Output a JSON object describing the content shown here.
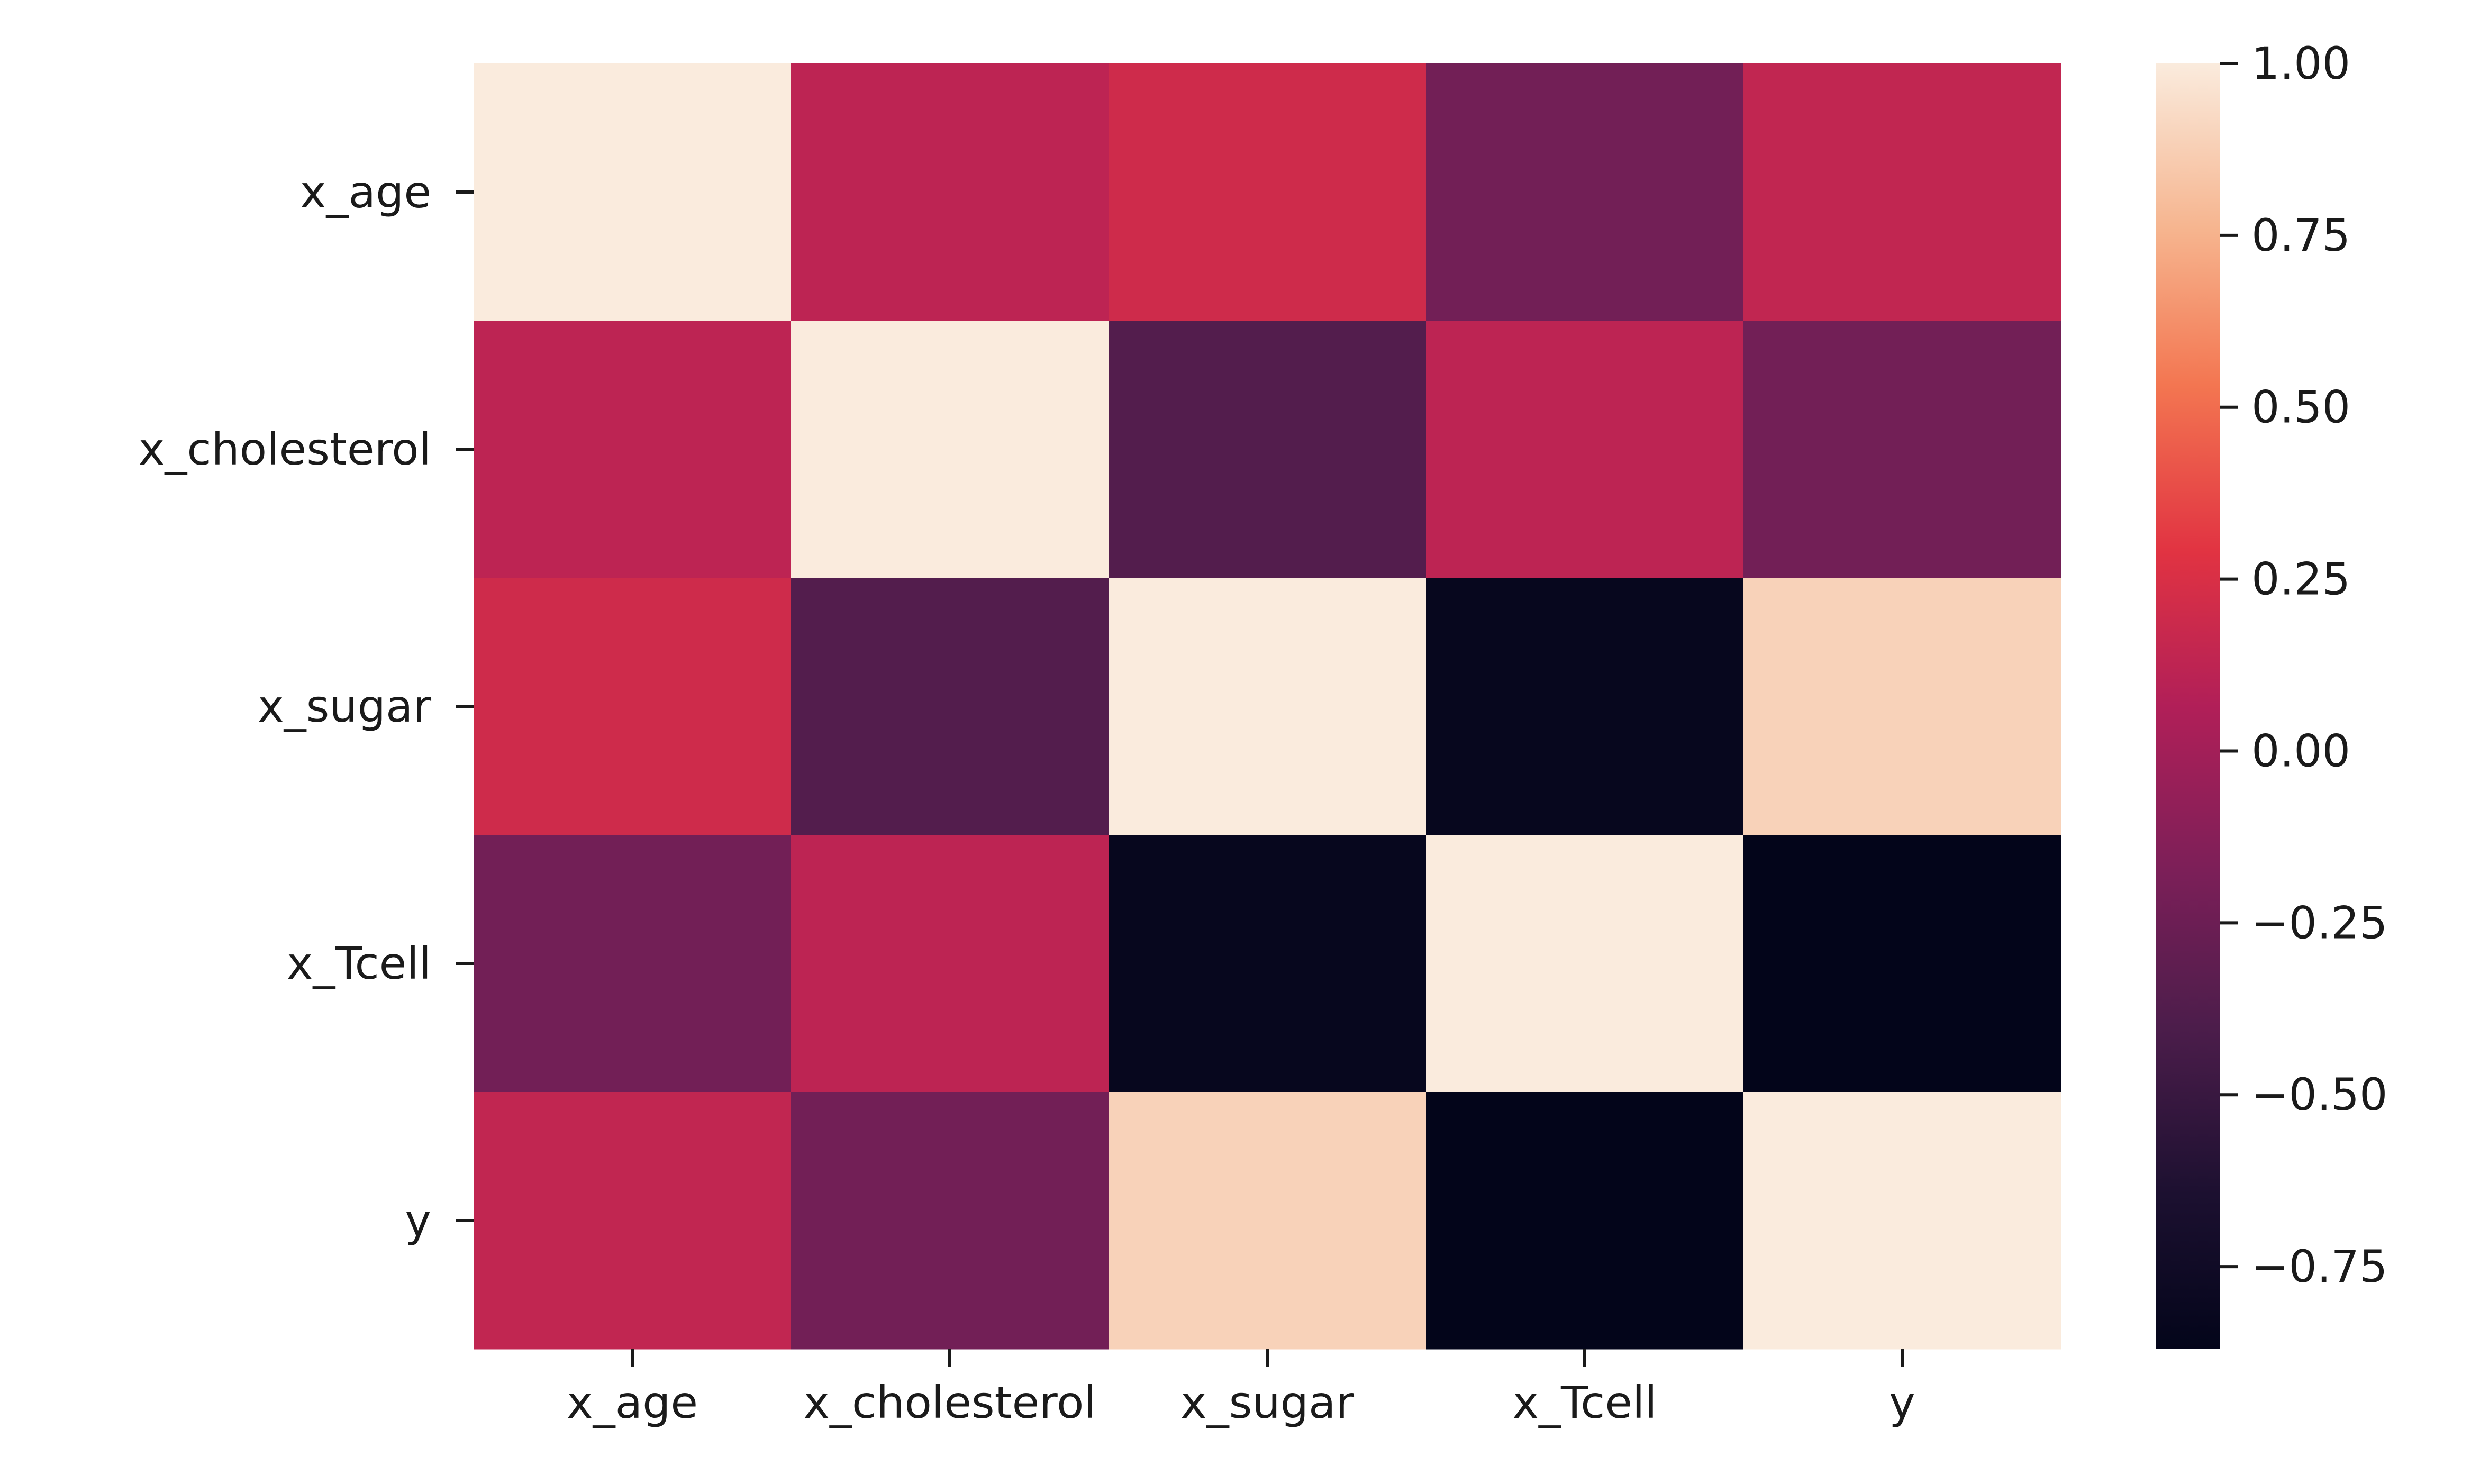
{
  "chart_data": {
    "type": "heatmap",
    "title": "",
    "xlabel": "",
    "ylabel": "",
    "x_labels": [
      "x_age",
      "x_cholesterol",
      "x_sugar",
      "x_Tcell",
      "y"
    ],
    "y_labels": [
      "x_age",
      "x_cholesterol",
      "x_sugar",
      "x_Tcell",
      "y"
    ],
    "values": [
      [
        1.0,
        0.12,
        0.2,
        -0.22,
        0.14
      ],
      [
        0.12,
        1.0,
        -0.37,
        0.12,
        -0.22
      ],
      [
        0.2,
        -0.37,
        1.0,
        -0.83,
        0.89
      ],
      [
        -0.22,
        0.12,
        -0.83,
        1.0,
        -0.87
      ],
      [
        0.14,
        -0.22,
        0.89,
        -0.87,
        1.0
      ]
    ],
    "colorbar": {
      "colormap": "rocket",
      "vmin": -0.87,
      "vmax": 1.0,
      "ticks": [
        1.0,
        0.75,
        0.5,
        0.25,
        0.0,
        -0.25,
        -0.5,
        -0.75
      ],
      "tick_labels": [
        "1.00",
        "0.75",
        "0.50",
        "0.25",
        "0.00",
        "−0.25",
        "−0.50",
        "−0.75"
      ]
    },
    "grid": false,
    "legend": "colorbar-right"
  }
}
